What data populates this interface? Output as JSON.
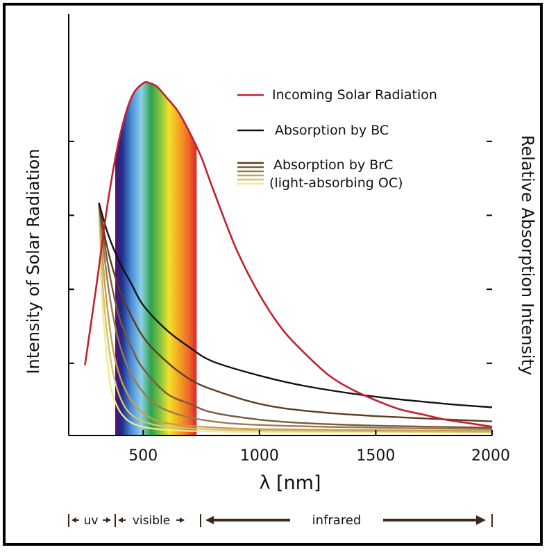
{
  "chart_data": {
    "type": "line",
    "xlabel": "λ [nm]",
    "ylabel_left": "Intensity of Solar Radiation",
    "ylabel_right": "Relative Absorption Intensity",
    "xlim": [
      180,
      2000
    ],
    "ylim": [
      0,
      1.0
    ],
    "x_ticks": [
      500,
      1000,
      1500,
      2000
    ],
    "x_tick_labels": [
      "500",
      "1000",
      "1500",
      "2000"
    ],
    "y_ticks": [
      0.205,
      0.415,
      0.625,
      0.835
    ],
    "grid": false,
    "legend_placement": "top-right",
    "legend": [
      {
        "label": "Incoming Solar Radiation",
        "color": "#c0202e"
      },
      {
        "label": "Absorption by BC",
        "color": "#111111"
      },
      {
        "label": "Absorption by BrC",
        "color": "#6b4a2e"
      },
      {
        "label": "(light-absorbing OC)",
        "color": "#f3e98a"
      }
    ],
    "spectrum_band": {
      "x_start": 380,
      "x_end": 730
    },
    "series": [
      {
        "name": "Incoming Solar Radiation",
        "color": "#c0202e",
        "x": [
          250,
          300,
          350,
          400,
          450,
          500,
          530,
          560,
          600,
          650,
          700,
          750,
          800,
          900,
          1000,
          1100,
          1200,
          1300,
          1400,
          1500,
          1600,
          1700,
          1800,
          1900,
          2000
        ],
        "y": [
          0.2,
          0.43,
          0.67,
          0.85,
          0.96,
          1.0,
          1.0,
          0.99,
          0.96,
          0.92,
          0.86,
          0.79,
          0.7,
          0.53,
          0.4,
          0.3,
          0.23,
          0.17,
          0.13,
          0.1,
          0.075,
          0.06,
          0.045,
          0.035,
          0.025
        ]
      },
      {
        "name": "Absorption by BC",
        "color": "#111111",
        "x": [
          310,
          350,
          400,
          450,
          500,
          600,
          700,
          800,
          1000,
          1200,
          1500,
          1800,
          2000
        ],
        "y": [
          0.66,
          0.57,
          0.49,
          0.43,
          0.37,
          0.3,
          0.25,
          0.21,
          0.17,
          0.14,
          0.11,
          0.09,
          0.08
        ]
      },
      {
        "name": "Absorption by BrC",
        "color": "#5c3d22",
        "x": [
          310,
          340,
          380,
          420,
          500,
          600,
          700,
          800,
          1000,
          1200,
          1500,
          2000
        ],
        "y": [
          0.66,
          0.55,
          0.45,
          0.38,
          0.28,
          0.21,
          0.16,
          0.13,
          0.09,
          0.07,
          0.055,
          0.04
        ]
      },
      {
        "name": "BrC 2",
        "color": "#7a5a3a",
        "x": [
          310,
          340,
          370,
          400,
          450,
          500,
          600,
          700,
          800,
          1000,
          1200,
          1500,
          2000
        ],
        "y": [
          0.66,
          0.52,
          0.41,
          0.33,
          0.25,
          0.19,
          0.12,
          0.09,
          0.065,
          0.045,
          0.035,
          0.028,
          0.022
        ]
      },
      {
        "name": "BrC 3",
        "color": "#9a7a4e",
        "x": [
          310,
          335,
          360,
          390,
          430,
          480,
          550,
          650,
          800,
          1000,
          1500,
          2000
        ],
        "y": [
          0.66,
          0.5,
          0.38,
          0.28,
          0.2,
          0.14,
          0.09,
          0.06,
          0.04,
          0.03,
          0.022,
          0.018
        ]
      },
      {
        "name": "BrC 4",
        "color": "#c4a050",
        "x": [
          310,
          330,
          350,
          375,
          410,
          460,
          520,
          600,
          750,
          1000,
          1500,
          2000
        ],
        "y": [
          0.66,
          0.47,
          0.34,
          0.23,
          0.15,
          0.09,
          0.055,
          0.035,
          0.025,
          0.018,
          0.015,
          0.013
        ]
      },
      {
        "name": "BrC 5",
        "color": "#dcc070",
        "x": [
          310,
          325,
          345,
          370,
          400,
          440,
          500,
          600,
          800,
          1000,
          1500,
          2000
        ],
        "y": [
          0.66,
          0.44,
          0.29,
          0.18,
          0.11,
          0.065,
          0.04,
          0.025,
          0.017,
          0.014,
          0.012,
          0.01
        ]
      },
      {
        "name": "BrC 6",
        "color": "#f2e98e",
        "x": [
          310,
          322,
          340,
          360,
          390,
          430,
          480,
          560,
          700,
          1000,
          1500,
          2000
        ],
        "y": [
          0.66,
          0.41,
          0.25,
          0.14,
          0.08,
          0.045,
          0.028,
          0.018,
          0.013,
          0.01,
          0.009,
          0.008
        ]
      }
    ]
  },
  "regions": {
    "uv": "uv",
    "visible": "visible",
    "infrared": "infrared"
  }
}
